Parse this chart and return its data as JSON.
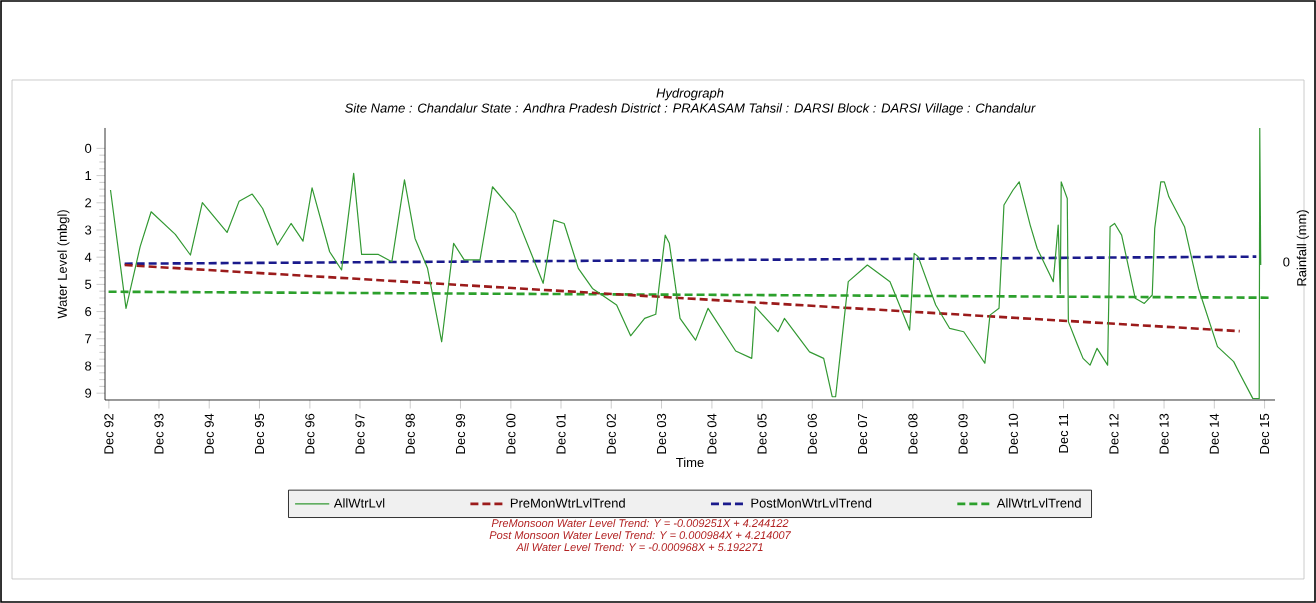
{
  "chart_data": {
    "type": "line",
    "title": "Hydrograph",
    "subtitle": "Site Name : Chandalur  State : Andhra Pradesh District : PRAKASAM  Tahsil : DARSI  Block : DARSI Village : Chandalur",
    "xlabel": "Time",
    "ylabel": "Water Level (mbgl)",
    "y2label": "Rainfall (mm)",
    "xlim": [
      "1992-11-03",
      "2016-02-14"
    ],
    "ylim": [
      9.25,
      -0.75
    ],
    "yticks": [
      0,
      1,
      2,
      3,
      4,
      5,
      6,
      7,
      8,
      9
    ],
    "xticks": [
      {
        "value": "1992-12",
        "label": "Dec 92"
      },
      {
        "value": "1993-12",
        "label": "Dec 93"
      },
      {
        "value": "1994-12",
        "label": "Dec 94"
      },
      {
        "value": "1995-12",
        "label": "Dec 95"
      },
      {
        "value": "1996-12",
        "label": "Dec 96"
      },
      {
        "value": "1997-12",
        "label": "Dec 97"
      },
      {
        "value": "1998-12",
        "label": "Dec 98"
      },
      {
        "value": "1999-12",
        "label": "Dec 99"
      },
      {
        "value": "2000-12",
        "label": "Dec 00"
      },
      {
        "value": "2001-12",
        "label": "Dec 01"
      },
      {
        "value": "2002-12",
        "label": "Dec 02"
      },
      {
        "value": "2003-12",
        "label": "Dec 03"
      },
      {
        "value": "2004-12",
        "label": "Dec 04"
      },
      {
        "value": "2005-12",
        "label": "Dec 05"
      },
      {
        "value": "2006-12",
        "label": "Dec 06"
      },
      {
        "value": "2007-12",
        "label": "Dec 07"
      },
      {
        "value": "2008-12",
        "label": "Dec 08"
      },
      {
        "value": "2009-12",
        "label": "Dec 09"
      },
      {
        "value": "2010-12",
        "label": "Dec 10"
      },
      {
        "value": "2011-12",
        "label": "Dec 11"
      },
      {
        "value": "2012-12",
        "label": "Dec 12"
      },
      {
        "value": "2013-12",
        "label": "Dec 13"
      },
      {
        "value": "2014-12",
        "label": "Dec 14"
      },
      {
        "value": "2015-12",
        "label": "Dec 15"
      }
    ],
    "marker": "none",
    "grid": false,
    "legend": "bottom",
    "series": [
      {
        "name": "AllWtrLvl",
        "color": "#339933",
        "line_style": "solid",
        "x": [
          "1992-12-13",
          "1993-04-05",
          "1993-07-17",
          "1993-10-05",
          "1994-03-29",
          "1994-07-17",
          "1994-10-12",
          "1995-04-09",
          "1995-07-06",
          "1995-10-09",
          "1995-12-24",
          "1996-04-09",
          "1996-07-17",
          "1996-10-12",
          "1996-12-17",
          "1997-04-24",
          "1997-07-20",
          "1997-10-16",
          "1997-12-13",
          "1998-04-13",
          "1998-07-20",
          "1998-10-20",
          "1999-01-04",
          "1999-04-05",
          "1999-07-17",
          "1999-10-12",
          "1999-12-28",
          "2000-04-20",
          "2000-07-20",
          "2001-01-01",
          "2001-07-24",
          "2001-10-09",
          "2001-12-24",
          "2002-04-05",
          "2002-07-17",
          "2003-01-08",
          "2003-04-20",
          "2003-07-31",
          "2003-10-20",
          "2003-12-28",
          "2004-01-26",
          "2004-04-13",
          "2004-08-04",
          "2004-11-03",
          "2005-05-23",
          "2005-09-17",
          "2005-10-12",
          "2006-03-26",
          "2006-05-12",
          "2006-11-11",
          "2007-02-21",
          "2007-04-24",
          "2007-05-19",
          "2007-08-19",
          "2008-01-04",
          "2008-06-17",
          "2008-11-07",
          "2008-12-10",
          "2009-01-08",
          "2009-05-16",
          "2009-08-26",
          "2009-12-06",
          "2010-05-08",
          "2010-06-14",
          "2010-08-19",
          "2010-09-24",
          "2010-11-29",
          "2011-01-12",
          "2011-04-02",
          "2011-05-23",
          "2011-09-17",
          "2011-10-23",
          "2011-11-07",
          "2011-11-14",
          "2011-12-28",
          "2012-01-04",
          "2012-03-11",
          "2012-04-20",
          "2012-06-10",
          "2012-07-31",
          "2012-10-16",
          "2012-11-03",
          "2012-12-06",
          "2013-01-26",
          "2013-05-05",
          "2013-07-10",
          "2013-09-06",
          "2013-09-24",
          "2013-11-07",
          "2013-12-03",
          "2014-01-04",
          "2014-04-28",
          "2014-08-08",
          "2014-12-24",
          "2015-04-20",
          "2015-05-27",
          "2015-09-06",
          "2015-10-23",
          "2015-10-27",
          "2015-11-03"
        ],
        "values": [
          1.53,
          5.88,
          3.61,
          2.33,
          3.16,
          3.92,
          1.99,
          3.09,
          1.94,
          1.68,
          2.21,
          3.55,
          2.76,
          3.41,
          1.45,
          3.8,
          4.47,
          0.92,
          3.9,
          3.9,
          4.17,
          1.16,
          3.31,
          4.41,
          7.11,
          3.49,
          4.1,
          4.1,
          1.41,
          2.39,
          4.96,
          2.64,
          2.76,
          4.41,
          5.15,
          5.76,
          6.89,
          6.25,
          6.1,
          3.19,
          3.49,
          6.25,
          7.05,
          5.88,
          7.45,
          7.72,
          5.82,
          6.74,
          6.25,
          7.48,
          7.72,
          9.13,
          9.13,
          4.9,
          4.29,
          4.9,
          6.68,
          3.86,
          3.98,
          5.76,
          6.62,
          6.74,
          7.9,
          6.13,
          5.88,
          2.08,
          1.53,
          1.23,
          2.82,
          3.68,
          4.9,
          2.82,
          5.33,
          1.23,
          1.84,
          6.37,
          7.23,
          7.72,
          7.97,
          7.35,
          7.97,
          2.88,
          2.76,
          3.19,
          5.51,
          5.7,
          5.39,
          2.94,
          1.23,
          1.23,
          1.78,
          2.88,
          5.15,
          7.29,
          7.84,
          8.21,
          9.19,
          9.2,
          -0.75,
          4.29
        ]
      },
      {
        "name": "PreMonWtrLvlTrend",
        "color": "#9b1b1b",
        "line_style": "dashed",
        "x": [
          "1993-03-26",
          "2015-06-03"
        ],
        "values": [
          4.29,
          6.72
        ]
      },
      {
        "name": "PostMonWtrLvlTrend",
        "color": "#1a1a8c",
        "line_style": "dashed",
        "x": [
          "1993-03-26",
          "2015-10-02"
        ],
        "values": [
          4.24,
          3.98
        ]
      },
      {
        "name": "AllWtrLvlTrend",
        "color": "#2ca02c",
        "line_style": "dashed",
        "x": [
          "1992-11-29",
          "2016-01-12"
        ],
        "values": [
          5.27,
          5.49
        ]
      }
    ],
    "annotations": [
      "0",
      "PreMonsoon Water Level Trend: Y = -0.009251X + 4.244122",
      "Post Monsoon Water Level Trend: Y = 0.000984X + 4.214007",
      "All Water Level Trend: Y = -0.000968X + 5.192271"
    ]
  }
}
